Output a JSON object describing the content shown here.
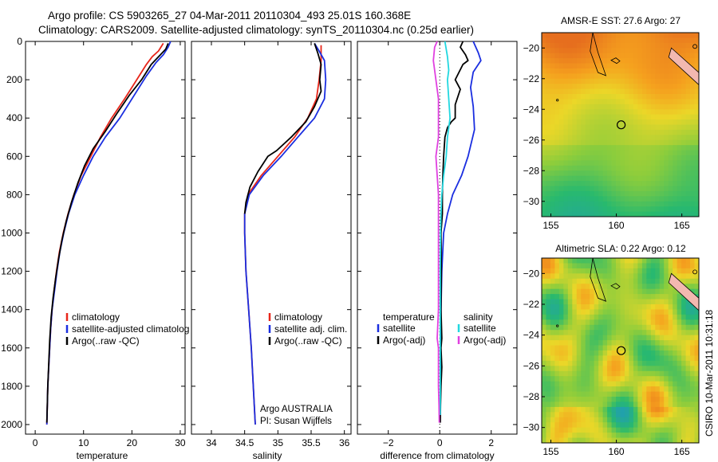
{
  "header": {
    "line1": "Argo profile: CS 5903265_27 04-Mar-2011 20110304_493 25.01S 160.368E",
    "line2": "Climatology: CARS2009. Satellite-adjusted climatology: synTS_20110304.nc (0.25d earlier)"
  },
  "side_stamp": "CSIRO 10-Mar-2011 10:31:18",
  "credit": {
    "line1": "Argo AUSTRALIA",
    "line2": "PI: Susan Wijffels"
  },
  "colors": {
    "climatology": "#e8261a",
    "satellite": "#1a2ee0",
    "argo": "#000000",
    "sat_diff_salinity": "#22d8e0",
    "argo_diff_salinity": "#e040e0"
  },
  "chart_data": [
    {
      "type": "line",
      "panel": "temperature",
      "xlabel": "temperature",
      "ylabel": "",
      "xlim": [
        -2,
        31
      ],
      "ylim": [
        2050,
        0
      ],
      "xticks": [
        0,
        10,
        20,
        30
      ],
      "yticks": [
        0,
        200,
        400,
        600,
        800,
        1000,
        1200,
        1400,
        1600,
        1800,
        2000
      ],
      "legend": [
        "climatology",
        "satellite-adjusted climatolog",
        "Argo(..raw -QC)"
      ],
      "legend_position": "lower-left",
      "series": [
        {
          "name": "climatology",
          "color": "#e8261a",
          "points": [
            [
              26.5,
              10
            ],
            [
              25.5,
              50
            ],
            [
              24.2,
              80
            ],
            [
              23,
              120
            ],
            [
              21,
              200
            ],
            [
              18.5,
              300
            ],
            [
              15.8,
              400
            ],
            [
              13.5,
              500
            ],
            [
              11.5,
              600
            ],
            [
              9.5,
              700
            ],
            [
              8,
              800
            ],
            [
              6.8,
              900
            ],
            [
              5.8,
              1000
            ],
            [
              5,
              1100
            ],
            [
              4.4,
              1200
            ],
            [
              3.9,
              1300
            ],
            [
              3.5,
              1400
            ],
            [
              3.2,
              1500
            ],
            [
              3,
              1600
            ],
            [
              2.8,
              1700
            ],
            [
              2.6,
              1800
            ],
            [
              2.5,
              1900
            ],
            [
              2.4,
              2000
            ]
          ]
        },
        {
          "name": "satellite-adjusted climatolog",
          "color": "#1a2ee0",
          "points": [
            [
              28,
              0
            ],
            [
              27.5,
              30
            ],
            [
              26.5,
              70
            ],
            [
              25,
              110
            ],
            [
              23,
              180
            ],
            [
              20.5,
              280
            ],
            [
              17.5,
              400
            ],
            [
              14.5,
              500
            ],
            [
              12,
              600
            ],
            [
              10,
              700
            ],
            [
              8.2,
              800
            ],
            [
              6.9,
              900
            ],
            [
              5.9,
              1000
            ],
            [
              5.1,
              1100
            ],
            [
              4.5,
              1200
            ],
            [
              4,
              1300
            ],
            [
              3.5,
              1400
            ],
            [
              3.2,
              1500
            ],
            [
              3,
              1600
            ],
            [
              2.8,
              1700
            ],
            [
              2.6,
              1800
            ],
            [
              2.5,
              1900
            ],
            [
              2.4,
              2000
            ]
          ]
        },
        {
          "name": "Argo(..raw -QC)",
          "color": "#000000",
          "points": [
            [
              27.5,
              10
            ],
            [
              27,
              40
            ],
            [
              25.5,
              80
            ],
            [
              24,
              120
            ],
            [
              22,
              200
            ],
            [
              19.5,
              280
            ],
            [
              16.8,
              380
            ],
            [
              14.5,
              470
            ],
            [
              12,
              560
            ],
            [
              10.2,
              650
            ],
            [
              8.8,
              740
            ],
            [
              7.5,
              840
            ],
            [
              6.4,
              940
            ],
            [
              5.5,
              1040
            ],
            [
              4.8,
              1140
            ],
            [
              4.2,
              1240
            ],
            [
              3.7,
              1340
            ],
            [
              3.3,
              1440
            ],
            [
              3,
              1560
            ],
            [
              2.8,
              1680
            ],
            [
              2.6,
              1800
            ],
            [
              2.5,
              1900
            ],
            [
              2.4,
              1990
            ]
          ]
        }
      ]
    },
    {
      "type": "line",
      "panel": "salinity",
      "xlabel": "salinity",
      "ylabel": "",
      "xlim": [
        33.7,
        36.1
      ],
      "ylim": [
        2050,
        0
      ],
      "xticks": [
        34,
        34.5,
        35,
        35.5,
        36
      ],
      "yticks": [],
      "legend": [
        "climatology",
        "satellite adj. clim.",
        "Argo(..raw -QC)"
      ],
      "legend_position": "lower-right",
      "series": [
        {
          "name": "climatology",
          "color": "#e8261a",
          "points": [
            [
              35.65,
              20
            ],
            [
              35.65,
              100
            ],
            [
              35.62,
              200
            ],
            [
              35.58,
              300
            ],
            [
              35.45,
              400
            ],
            [
              35.25,
              500
            ],
            [
              35,
              600
            ],
            [
              34.75,
              700
            ],
            [
              34.55,
              800
            ],
            [
              34.5,
              900
            ],
            [
              34.5,
              1000
            ],
            [
              34.52,
              1200
            ],
            [
              34.56,
              1400
            ],
            [
              34.6,
              1600
            ],
            [
              34.63,
              1800
            ],
            [
              34.66,
              2000
            ]
          ]
        },
        {
          "name": "satellite adj. clim.",
          "color": "#1a2ee0",
          "points": [
            [
              35.55,
              10
            ],
            [
              35.62,
              50
            ],
            [
              35.7,
              100
            ],
            [
              35.72,
              200
            ],
            [
              35.7,
              300
            ],
            [
              35.55,
              400
            ],
            [
              35.3,
              500
            ],
            [
              35.05,
              600
            ],
            [
              34.78,
              700
            ],
            [
              34.57,
              800
            ],
            [
              34.5,
              900
            ],
            [
              34.5,
              1000
            ],
            [
              34.52,
              1200
            ],
            [
              34.56,
              1400
            ],
            [
              34.6,
              1600
            ],
            [
              34.63,
              1800
            ],
            [
              34.66,
              2000
            ]
          ]
        },
        {
          "name": "Argo(..raw -QC)",
          "color": "#000000",
          "points": [
            [
              35.55,
              10
            ],
            [
              35.6,
              60
            ],
            [
              35.65,
              120
            ],
            [
              35.63,
              200
            ],
            [
              35.65,
              260
            ],
            [
              35.55,
              340
            ],
            [
              35.42,
              420
            ],
            [
              35.2,
              500
            ],
            [
              34.98,
              570
            ],
            [
              34.85,
              600
            ],
            [
              34.7,
              680
            ],
            [
              34.58,
              760
            ],
            [
              34.52,
              840
            ],
            [
              34.5,
              900
            ]
          ]
        }
      ]
    },
    {
      "type": "line",
      "panel": "difference",
      "xlabel": "difference from climatology",
      "ylabel": "",
      "xlim": [
        -3.2,
        3.0
      ],
      "ylim": [
        2050,
        0
      ],
      "xticks": [
        -2,
        0,
        2
      ],
      "yticks": [],
      "zero_line": "dotted",
      "legend": [
        "temperature",
        "satellite",
        "Argo(-adj)",
        "salinity",
        "satellite",
        "Argo(-adj)"
      ],
      "legend_position": "lower-center",
      "series": [
        {
          "name": "satellite",
          "group": "temperature",
          "color": "#1a2ee0",
          "points": [
            [
              1.3,
              0
            ],
            [
              1.5,
              60
            ],
            [
              1.6,
              100
            ],
            [
              1.3,
              160
            ],
            [
              1.2,
              240
            ],
            [
              1.3,
              340
            ],
            [
              1.35,
              460
            ],
            [
              1.1,
              600
            ],
            [
              0.85,
              700
            ],
            [
              0.5,
              800
            ],
            [
              0.3,
              900
            ],
            [
              0.15,
              1000
            ],
            [
              0.08,
              1200
            ],
            [
              0.05,
              1400
            ],
            [
              0.03,
              1600
            ],
            [
              0.02,
              1800
            ],
            [
              0.02,
              1950
            ]
          ]
        },
        {
          "name": "Argo(-adj)",
          "group": "temperature",
          "color": "#000000",
          "points": [
            [
              0.9,
              0
            ],
            [
              0.8,
              30
            ],
            [
              1.0,
              70
            ],
            [
              1.1,
              100
            ],
            [
              0.9,
              120
            ],
            [
              0.6,
              200
            ],
            [
              0.8,
              250
            ],
            [
              0.6,
              330
            ],
            [
              0.6,
              400
            ],
            [
              0.45,
              420
            ],
            [
              0.3,
              450
            ],
            [
              0.2,
              500
            ],
            [
              0.15,
              600
            ],
            [
              0.12,
              700
            ],
            [
              0.1,
              800
            ],
            [
              0.1,
              900
            ],
            [
              0.05,
              1000
            ],
            [
              0.06,
              1200
            ],
            [
              0.05,
              1400
            ],
            [
              0.08,
              1550
            ],
            [
              0.05,
              1600
            ],
            [
              0.08,
              1700
            ],
            [
              0.05,
              1800
            ],
            [
              0.03,
              1900
            ],
            [
              0.02,
              1990
            ]
          ]
        },
        {
          "name": "satellite",
          "group": "salinity",
          "color": "#22d8e0",
          "points": [
            [
              0.2,
              0
            ],
            [
              0.3,
              80
            ],
            [
              0.35,
              150
            ],
            [
              0.3,
              200
            ],
            [
              0.35,
              300
            ],
            [
              0.4,
              400
            ],
            [
              0.3,
              500
            ],
            [
              0.25,
              600
            ],
            [
              0.15,
              700
            ],
            [
              0.08,
              800
            ],
            [
              0.05,
              900
            ],
            [
              0.03,
              1000
            ],
            [
              0.02,
              1200
            ],
            [
              0.02,
              1400
            ],
            [
              0.02,
              1600
            ],
            [
              0.02,
              1800
            ],
            [
              0.02,
              1950
            ]
          ]
        },
        {
          "name": "Argo(-adj)",
          "group": "salinity",
          "color": "#e040e0",
          "points": [
            [
              -0.1,
              0
            ],
            [
              -0.2,
              30
            ],
            [
              -0.25,
              100
            ],
            [
              -0.15,
              200
            ],
            [
              -0.1,
              250
            ],
            [
              -0.05,
              300
            ],
            [
              -0.05,
              400
            ],
            [
              -0.05,
              500
            ],
            [
              -0.15,
              600
            ],
            [
              -0.1,
              700
            ],
            [
              -0.05,
              800
            ],
            [
              -0.05,
              900
            ],
            [
              -0.05,
              1000
            ],
            [
              -0.05,
              1200
            ],
            [
              -0.05,
              1400
            ],
            [
              -0.1,
              1550
            ],
            [
              -0.05,
              1600
            ],
            [
              -0.05,
              1800
            ],
            [
              -0.03,
              1900
            ],
            [
              -0.02,
              1990
            ]
          ]
        }
      ]
    },
    {
      "type": "heatmap",
      "panel": "sst_map",
      "title": "AMSR-E SST: 27.6  Argo: 27",
      "xticks": [
        155,
        160,
        165
      ],
      "yticks": [
        -20,
        -22,
        -24,
        -26,
        -28,
        -30
      ],
      "xlim": [
        154.3,
        166.3
      ],
      "ylim": [
        -31,
        -19
      ],
      "marker": {
        "lon": 160.368,
        "lat": -25.01
      }
    },
    {
      "type": "heatmap",
      "panel": "sla_map",
      "title": "Altimetric SLA: 0.22  Argo: 0.12",
      "xticks": [
        155,
        160,
        165
      ],
      "yticks": [
        -20,
        -22,
        -24,
        -26,
        -28,
        -30
      ],
      "xlim": [
        154.3,
        166.3
      ],
      "ylim": [
        -31,
        -19
      ],
      "marker": {
        "lon": 160.368,
        "lat": -25.01
      }
    }
  ]
}
